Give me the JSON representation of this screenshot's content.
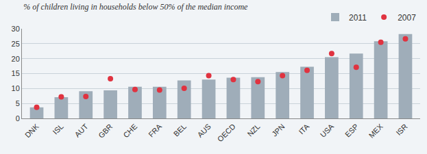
{
  "chart_data": {
    "type": "bar",
    "title": "% of children living in households below 50% of the median income",
    "categories": [
      "DNK",
      "ISL",
      "AUT",
      "GBR",
      "CHE",
      "FRA",
      "BEL",
      "AUS",
      "OECD",
      "NZL",
      "JPN",
      "ITA",
      "USA",
      "ESP",
      "MEX",
      "ISR"
    ],
    "series": [
      {
        "name": "2011",
        "type": "bar",
        "color": "#9fadb9",
        "values": [
          3.7,
          7.1,
          9.1,
          9.4,
          10.6,
          10.6,
          12.7,
          13.0,
          13.6,
          13.8,
          15.5,
          17.3,
          20.5,
          21.7,
          25.8,
          28.2
        ]
      },
      {
        "name": "2007",
        "type": "scatter",
        "marker": "circle",
        "color": "#e03340",
        "values": [
          3.7,
          7.2,
          7.3,
          13.3,
          9.7,
          9.5,
          10.1,
          14.3,
          13.0,
          12.3,
          14.3,
          16.1,
          21.7,
          17.1,
          25.5,
          26.6
        ]
      }
    ],
    "ylim": [
      0,
      30
    ],
    "yticks": [
      0,
      5,
      10,
      15,
      20,
      25,
      30
    ],
    "grid": true,
    "legend": "top-right"
  }
}
